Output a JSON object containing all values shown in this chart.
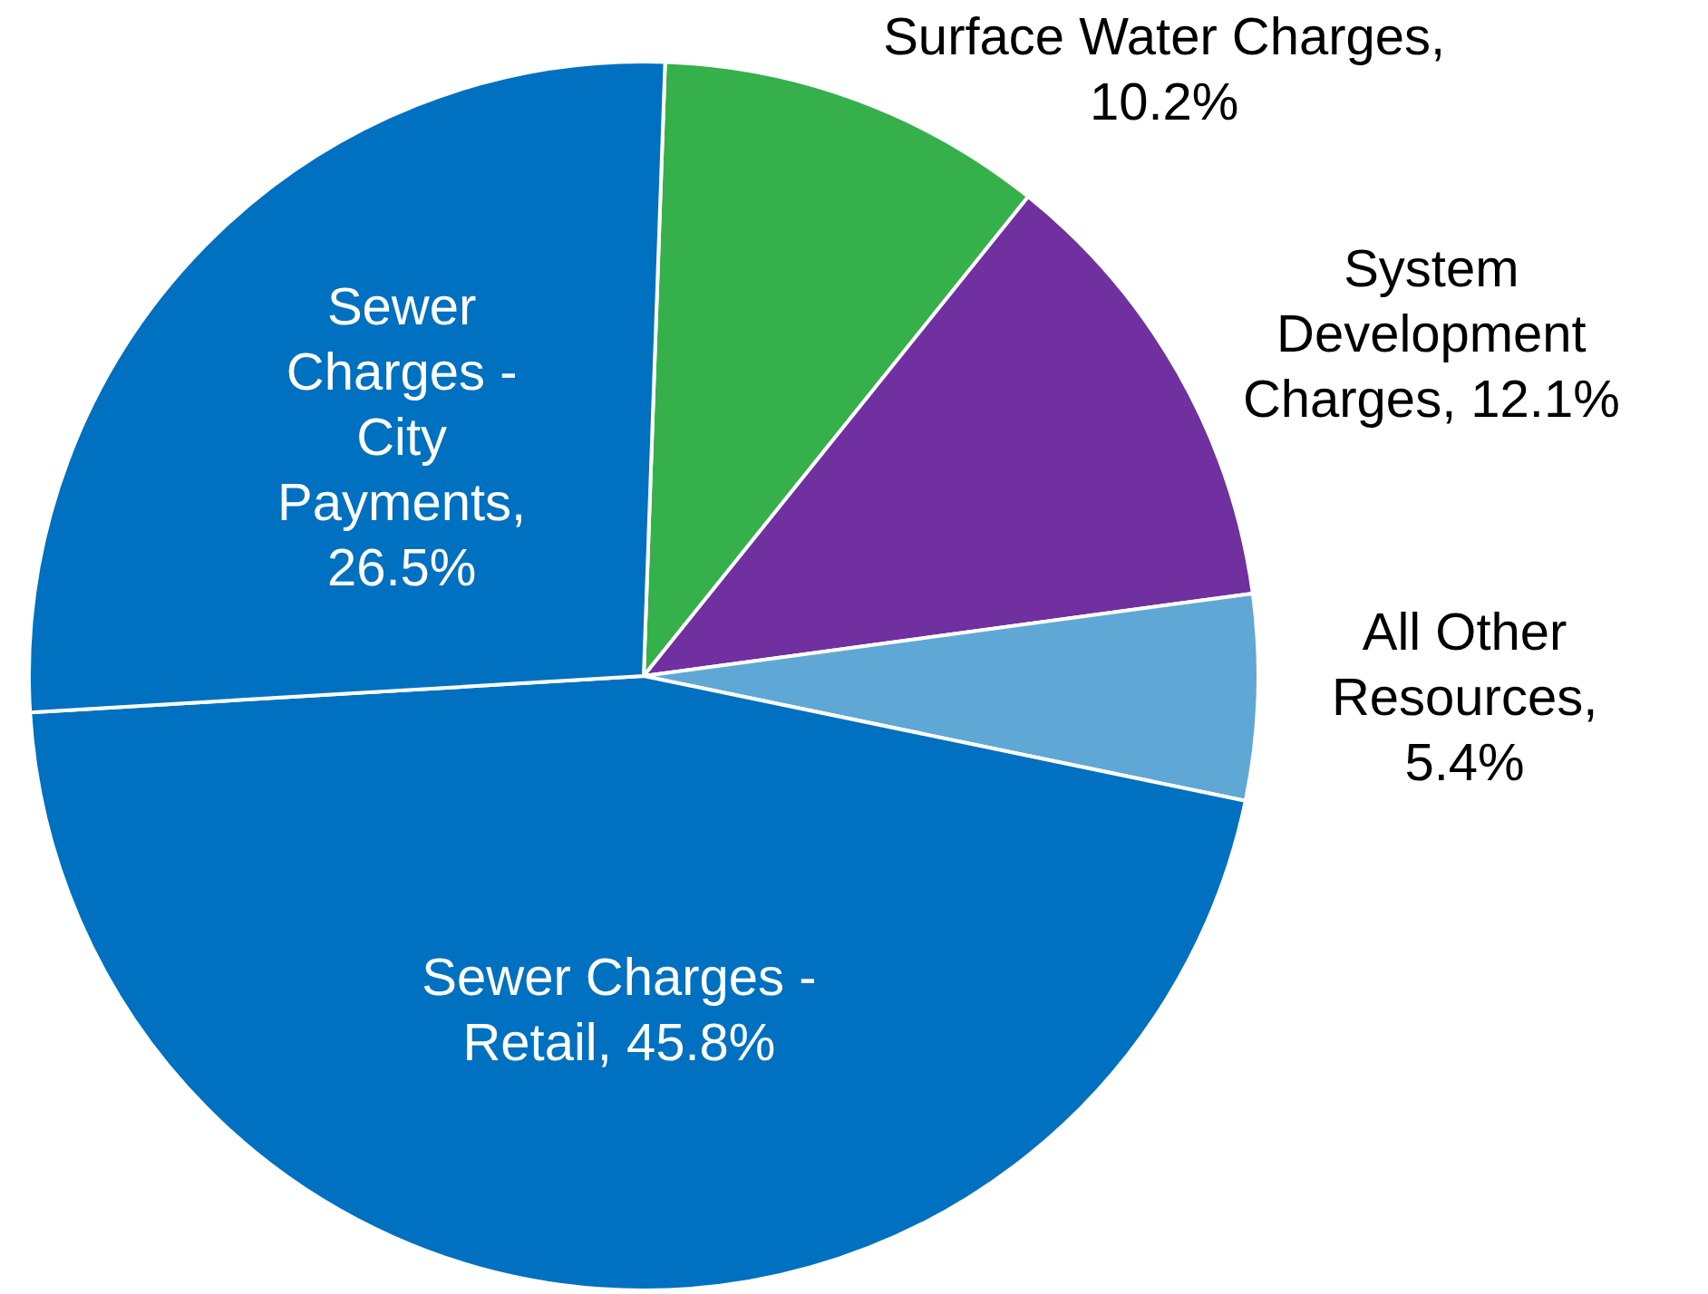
{
  "chart_data": {
    "type": "pie",
    "categories": [
      "Surface Water Charges",
      "System Development Charges",
      "All Other Resources",
      "Sewer Charges - Retail",
      "Sewer Charges - City Payments"
    ],
    "values": [
      10.2,
      12.1,
      5.4,
      45.8,
      26.5
    ],
    "colors": [
      "#35b04a",
      "#7030a0",
      "#5fa8d6",
      "#0070c0",
      "#0070c0"
    ],
    "value_labels": [
      ", 10.2%",
      ", 12.1%",
      ", 5.4%",
      ", 45.8%",
      ", 26.5%"
    ],
    "data_labels": true,
    "legend": false
  }
}
